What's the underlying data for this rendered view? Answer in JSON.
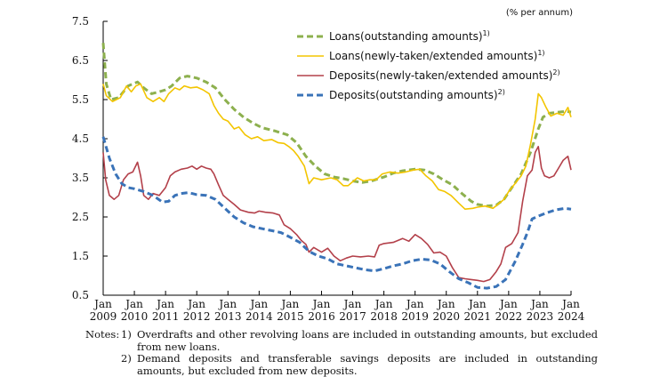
{
  "chart_data": {
    "type": "line",
    "unit_label": "(% per annum)",
    "ylim": [
      0.5,
      7.5
    ],
    "y_ticks": [
      "7.5",
      "6.5",
      "5.5",
      "4.5",
      "3.5",
      "2.5",
      "1.5",
      "0.5"
    ],
    "xlim": [
      2009.0,
      2024.0
    ],
    "x_ticks": [
      {
        "month": "Jan",
        "year": "2009"
      },
      {
        "month": "Jan",
        "year": "2010"
      },
      {
        "month": "Jan",
        "year": "2011"
      },
      {
        "month": "Jan",
        "year": "2012"
      },
      {
        "month": "Jan",
        "year": "2013"
      },
      {
        "month": "Jan",
        "year": "2014"
      },
      {
        "month": "Jan",
        "year": "2015"
      },
      {
        "month": "Jan",
        "year": "2016"
      },
      {
        "month": "Jan",
        "year": "2017"
      },
      {
        "month": "Jan",
        "year": "2018"
      },
      {
        "month": "Jan",
        "year": "2019"
      },
      {
        "month": "Jan",
        "year": "2020"
      },
      {
        "month": "Jan",
        "year": "2021"
      },
      {
        "month": "Jan",
        "year": "2022"
      },
      {
        "month": "Jan",
        "year": "2023"
      },
      {
        "month": "Jan",
        "year": "2024"
      }
    ],
    "series": [
      {
        "name": "Loans(outstanding amounts)",
        "note": "1)",
        "color": "#8db04e",
        "dash": "dashed",
        "points": [
          [
            2009.0,
            6.95
          ],
          [
            2009.1,
            5.9
          ],
          [
            2009.25,
            5.5
          ],
          [
            2009.5,
            5.55
          ],
          [
            2009.8,
            5.85
          ],
          [
            2010.1,
            5.95
          ],
          [
            2010.3,
            5.8
          ],
          [
            2010.55,
            5.65
          ],
          [
            2010.8,
            5.7
          ],
          [
            2011.0,
            5.75
          ],
          [
            2011.2,
            5.85
          ],
          [
            2011.45,
            6.05
          ],
          [
            2011.7,
            6.1
          ],
          [
            2012.0,
            6.05
          ],
          [
            2012.3,
            5.95
          ],
          [
            2012.6,
            5.8
          ],
          [
            2012.9,
            5.5
          ],
          [
            2013.2,
            5.25
          ],
          [
            2013.5,
            5.05
          ],
          [
            2013.8,
            4.9
          ],
          [
            2014.1,
            4.78
          ],
          [
            2014.5,
            4.7
          ],
          [
            2014.9,
            4.6
          ],
          [
            2015.2,
            4.4
          ],
          [
            2015.5,
            4.05
          ],
          [
            2015.8,
            3.8
          ],
          [
            2016.1,
            3.6
          ],
          [
            2016.4,
            3.52
          ],
          [
            2016.7,
            3.48
          ],
          [
            2017.0,
            3.42
          ],
          [
            2017.3,
            3.38
          ],
          [
            2017.6,
            3.42
          ],
          [
            2018.0,
            3.52
          ],
          [
            2018.3,
            3.62
          ],
          [
            2018.6,
            3.68
          ],
          [
            2019.0,
            3.72
          ],
          [
            2019.3,
            3.7
          ],
          [
            2019.6,
            3.6
          ],
          [
            2019.9,
            3.45
          ],
          [
            2020.2,
            3.32
          ],
          [
            2020.5,
            3.1
          ],
          [
            2020.8,
            2.9
          ],
          [
            2021.0,
            2.82
          ],
          [
            2021.3,
            2.78
          ],
          [
            2021.6,
            2.8
          ],
          [
            2021.85,
            2.95
          ],
          [
            2022.1,
            3.25
          ],
          [
            2022.4,
            3.6
          ],
          [
            2022.7,
            4.15
          ],
          [
            2022.95,
            4.75
          ],
          [
            2023.1,
            5.05
          ],
          [
            2023.3,
            5.15
          ],
          [
            2023.6,
            5.18
          ],
          [
            2023.85,
            5.2
          ],
          [
            2024.0,
            5.18
          ]
        ]
      },
      {
        "name": "Loans(newly-taken/extended amounts)",
        "note": "1)",
        "color": "#f3c500",
        "dash": "solid",
        "points": [
          [
            2009.0,
            5.9
          ],
          [
            2009.1,
            5.6
          ],
          [
            2009.3,
            5.45
          ],
          [
            2009.55,
            5.55
          ],
          [
            2009.75,
            5.85
          ],
          [
            2009.9,
            5.7
          ],
          [
            2010.05,
            5.85
          ],
          [
            2010.2,
            5.9
          ],
          [
            2010.4,
            5.55
          ],
          [
            2010.6,
            5.45
          ],
          [
            2010.8,
            5.55
          ],
          [
            2010.95,
            5.45
          ],
          [
            2011.1,
            5.65
          ],
          [
            2011.3,
            5.8
          ],
          [
            2011.45,
            5.75
          ],
          [
            2011.6,
            5.85
          ],
          [
            2011.8,
            5.8
          ],
          [
            2012.0,
            5.82
          ],
          [
            2012.2,
            5.75
          ],
          [
            2012.4,
            5.65
          ],
          [
            2012.55,
            5.35
          ],
          [
            2012.7,
            5.15
          ],
          [
            2012.85,
            5.0
          ],
          [
            2013.0,
            4.95
          ],
          [
            2013.2,
            4.75
          ],
          [
            2013.35,
            4.8
          ],
          [
            2013.55,
            4.6
          ],
          [
            2013.75,
            4.5
          ],
          [
            2013.95,
            4.55
          ],
          [
            2014.15,
            4.45
          ],
          [
            2014.4,
            4.48
          ],
          [
            2014.6,
            4.4
          ],
          [
            2014.8,
            4.38
          ],
          [
            2014.95,
            4.3
          ],
          [
            2015.1,
            4.2
          ],
          [
            2015.25,
            4.05
          ],
          [
            2015.45,
            3.8
          ],
          [
            2015.6,
            3.35
          ],
          [
            2015.75,
            3.5
          ],
          [
            2016.0,
            3.45
          ],
          [
            2016.3,
            3.5
          ],
          [
            2016.5,
            3.45
          ],
          [
            2016.7,
            3.3
          ],
          [
            2016.85,
            3.3
          ],
          [
            2017.0,
            3.4
          ],
          [
            2017.15,
            3.5
          ],
          [
            2017.35,
            3.42
          ],
          [
            2017.55,
            3.45
          ],
          [
            2017.75,
            3.45
          ],
          [
            2017.95,
            3.6
          ],
          [
            2018.2,
            3.65
          ],
          [
            2018.45,
            3.62
          ],
          [
            2018.7,
            3.65
          ],
          [
            2018.95,
            3.7
          ],
          [
            2019.15,
            3.72
          ],
          [
            2019.35,
            3.55
          ],
          [
            2019.55,
            3.42
          ],
          [
            2019.75,
            3.2
          ],
          [
            2019.95,
            3.15
          ],
          [
            2020.15,
            3.05
          ],
          [
            2020.4,
            2.85
          ],
          [
            2020.6,
            2.7
          ],
          [
            2020.85,
            2.72
          ],
          [
            2021.0,
            2.75
          ],
          [
            2021.25,
            2.78
          ],
          [
            2021.5,
            2.72
          ],
          [
            2021.7,
            2.85
          ],
          [
            2021.85,
            2.95
          ],
          [
            2022.0,
            3.15
          ],
          [
            2022.2,
            3.35
          ],
          [
            2022.4,
            3.55
          ],
          [
            2022.55,
            3.8
          ],
          [
            2022.7,
            4.35
          ],
          [
            2022.85,
            5.0
          ],
          [
            2022.95,
            5.65
          ],
          [
            2023.05,
            5.55
          ],
          [
            2023.2,
            5.3
          ],
          [
            2023.35,
            5.08
          ],
          [
            2023.55,
            5.15
          ],
          [
            2023.75,
            5.1
          ],
          [
            2023.9,
            5.3
          ],
          [
            2024.0,
            5.05
          ]
        ]
      },
      {
        "name": "Deposits(newly-taken/extended amounts)",
        "note": "2)",
        "color": "#b3404a",
        "dash": "solid",
        "points": [
          [
            2009.0,
            4.15
          ],
          [
            2009.08,
            3.45
          ],
          [
            2009.2,
            3.05
          ],
          [
            2009.35,
            2.95
          ],
          [
            2009.5,
            3.05
          ],
          [
            2009.65,
            3.45
          ],
          [
            2009.8,
            3.6
          ],
          [
            2009.95,
            3.65
          ],
          [
            2010.1,
            3.9
          ],
          [
            2010.2,
            3.55
          ],
          [
            2010.3,
            3.05
          ],
          [
            2010.45,
            2.95
          ],
          [
            2010.6,
            3.1
          ],
          [
            2010.8,
            3.05
          ],
          [
            2011.0,
            3.25
          ],
          [
            2011.15,
            3.55
          ],
          [
            2011.3,
            3.65
          ],
          [
            2011.5,
            3.72
          ],
          [
            2011.7,
            3.75
          ],
          [
            2011.85,
            3.8
          ],
          [
            2012.0,
            3.72
          ],
          [
            2012.15,
            3.8
          ],
          [
            2012.3,
            3.75
          ],
          [
            2012.45,
            3.72
          ],
          [
            2012.55,
            3.6
          ],
          [
            2012.7,
            3.32
          ],
          [
            2012.85,
            3.05
          ],
          [
            2013.0,
            2.95
          ],
          [
            2013.2,
            2.82
          ],
          [
            2013.4,
            2.68
          ],
          [
            2013.65,
            2.62
          ],
          [
            2013.85,
            2.6
          ],
          [
            2014.0,
            2.65
          ],
          [
            2014.2,
            2.62
          ],
          [
            2014.45,
            2.6
          ],
          [
            2014.65,
            2.55
          ],
          [
            2014.8,
            2.3
          ],
          [
            2015.0,
            2.2
          ],
          [
            2015.2,
            2.05
          ],
          [
            2015.35,
            1.9
          ],
          [
            2015.5,
            1.8
          ],
          [
            2015.6,
            1.6
          ],
          [
            2015.75,
            1.72
          ],
          [
            2016.0,
            1.6
          ],
          [
            2016.2,
            1.7
          ],
          [
            2016.4,
            1.5
          ],
          [
            2016.6,
            1.38
          ],
          [
            2016.8,
            1.45
          ],
          [
            2017.0,
            1.5
          ],
          [
            2017.25,
            1.48
          ],
          [
            2017.5,
            1.5
          ],
          [
            2017.7,
            1.48
          ],
          [
            2017.85,
            1.78
          ],
          [
            2018.0,
            1.82
          ],
          [
            2018.3,
            1.85
          ],
          [
            2018.6,
            1.95
          ],
          [
            2018.8,
            1.88
          ],
          [
            2019.0,
            2.05
          ],
          [
            2019.2,
            1.95
          ],
          [
            2019.4,
            1.8
          ],
          [
            2019.6,
            1.58
          ],
          [
            2019.8,
            1.6
          ],
          [
            2020.0,
            1.5
          ],
          [
            2020.2,
            1.2
          ],
          [
            2020.4,
            0.95
          ],
          [
            2020.6,
            0.92
          ],
          [
            2020.8,
            0.9
          ],
          [
            2021.0,
            0.88
          ],
          [
            2021.2,
            0.85
          ],
          [
            2021.4,
            0.9
          ],
          [
            2021.6,
            1.1
          ],
          [
            2021.75,
            1.3
          ],
          [
            2021.9,
            1.72
          ],
          [
            2022.1,
            1.82
          ],
          [
            2022.3,
            2.1
          ],
          [
            2022.45,
            2.9
          ],
          [
            2022.6,
            3.55
          ],
          [
            2022.75,
            3.7
          ],
          [
            2022.85,
            4.15
          ],
          [
            2022.95,
            4.3
          ],
          [
            2023.05,
            3.75
          ],
          [
            2023.15,
            3.55
          ],
          [
            2023.3,
            3.5
          ],
          [
            2023.45,
            3.55
          ],
          [
            2023.6,
            3.75
          ],
          [
            2023.75,
            3.95
          ],
          [
            2023.9,
            4.05
          ],
          [
            2024.0,
            3.7
          ]
        ]
      },
      {
        "name": "Deposits(outstanding amounts)",
        "note": "2)",
        "color": "#3a73b8",
        "dash": "dashed",
        "points": [
          [
            2009.0,
            4.55
          ],
          [
            2009.2,
            4.0
          ],
          [
            2009.4,
            3.6
          ],
          [
            2009.6,
            3.35
          ],
          [
            2009.8,
            3.25
          ],
          [
            2010.0,
            3.22
          ],
          [
            2010.3,
            3.15
          ],
          [
            2010.6,
            3.05
          ],
          [
            2010.9,
            2.88
          ],
          [
            2011.1,
            2.9
          ],
          [
            2011.3,
            3.05
          ],
          [
            2011.5,
            3.1
          ],
          [
            2011.7,
            3.12
          ],
          [
            2011.85,
            3.1
          ],
          [
            2012.0,
            3.07
          ],
          [
            2012.3,
            3.05
          ],
          [
            2012.6,
            2.95
          ],
          [
            2012.9,
            2.72
          ],
          [
            2013.2,
            2.5
          ],
          [
            2013.5,
            2.35
          ],
          [
            2013.8,
            2.25
          ],
          [
            2014.1,
            2.2
          ],
          [
            2014.4,
            2.15
          ],
          [
            2014.7,
            2.1
          ],
          [
            2015.0,
            1.98
          ],
          [
            2015.3,
            1.85
          ],
          [
            2015.6,
            1.62
          ],
          [
            2015.9,
            1.5
          ],
          [
            2016.2,
            1.43
          ],
          [
            2016.5,
            1.3
          ],
          [
            2016.8,
            1.25
          ],
          [
            2017.1,
            1.2
          ],
          [
            2017.4,
            1.15
          ],
          [
            2017.7,
            1.12
          ],
          [
            2018.0,
            1.18
          ],
          [
            2018.3,
            1.25
          ],
          [
            2018.6,
            1.3
          ],
          [
            2018.9,
            1.38
          ],
          [
            2019.2,
            1.42
          ],
          [
            2019.5,
            1.4
          ],
          [
            2019.8,
            1.3
          ],
          [
            2020.1,
            1.1
          ],
          [
            2020.4,
            0.92
          ],
          [
            2020.7,
            0.82
          ],
          [
            2021.0,
            0.7
          ],
          [
            2021.3,
            0.68
          ],
          [
            2021.6,
            0.72
          ],
          [
            2021.9,
            0.9
          ],
          [
            2022.2,
            1.35
          ],
          [
            2022.45,
            1.8
          ],
          [
            2022.6,
            2.1
          ],
          [
            2022.75,
            2.45
          ],
          [
            2022.95,
            2.52
          ],
          [
            2023.2,
            2.6
          ],
          [
            2023.5,
            2.68
          ],
          [
            2023.8,
            2.72
          ],
          [
            2024.0,
            2.7
          ]
        ]
      }
    ]
  },
  "notes": {
    "label": "Notes:",
    "items": [
      {
        "num": "1)",
        "text": "Overdrafts and other revolving loans are included in outstanding amounts, but excluded from new loans."
      },
      {
        "num": "2)",
        "text": "Demand deposits and transferable savings deposits are included in outstanding amounts, but excluded from new deposits."
      }
    ]
  }
}
